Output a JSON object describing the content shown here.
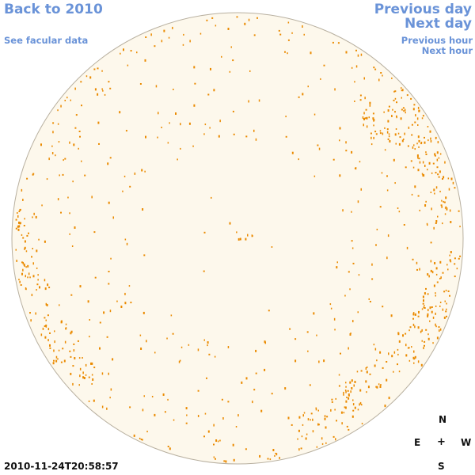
{
  "nav": {
    "back_label": "Back to 2010",
    "facular_label": "See facular data",
    "prev_day_label": "Previous day",
    "next_day_label": "Next day",
    "prev_hour_label": "Previous hour",
    "next_hour_label": "Next hour"
  },
  "compass": {
    "north": "N",
    "east": "E",
    "west": "W",
    "south": "S",
    "center": "+"
  },
  "timestamp": "2010-11-24T20:58:57",
  "colors": {
    "link": "#6a93d8",
    "disk_fill": "#fdf8ec",
    "disk_stroke": "#b8b0a0",
    "facula": "#ea8a00"
  }
}
